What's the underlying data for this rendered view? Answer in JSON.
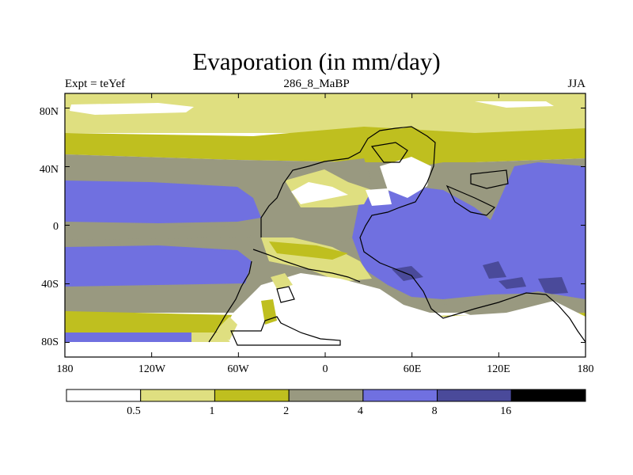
{
  "title": "Evaporation (in mm/day)",
  "subtitle_left": "Expt = teYef",
  "subtitle_center": "286_8_MaBP",
  "subtitle_right": "JJA",
  "lat_ticks": [
    "80N",
    "40N",
    "0",
    "40S",
    "80S"
  ],
  "lon_ticks": [
    "180",
    "120W",
    "60W",
    "0",
    "60E",
    "120E",
    "180"
  ],
  "colorbar": {
    "colors": [
      "#ffffff",
      "#dfdf80",
      "#bfbf1f",
      "#999980",
      "#7070e0",
      "#4a4a9a",
      "#000000"
    ],
    "labels": [
      "0.5",
      "1",
      "2",
      "4",
      "8",
      "16"
    ]
  },
  "chart_data": {
    "type": "heatmap",
    "title": "Evaporation (in mm/day)",
    "x_range": [
      -180,
      180
    ],
    "y_range": [
      -90,
      90
    ],
    "x_ticks": [
      -180,
      -120,
      -60,
      0,
      60,
      120,
      180
    ],
    "y_ticks": [
      80,
      40,
      0,
      -40,
      -80
    ],
    "levels": [
      0.5,
      1,
      2,
      4,
      8,
      16
    ]
  }
}
